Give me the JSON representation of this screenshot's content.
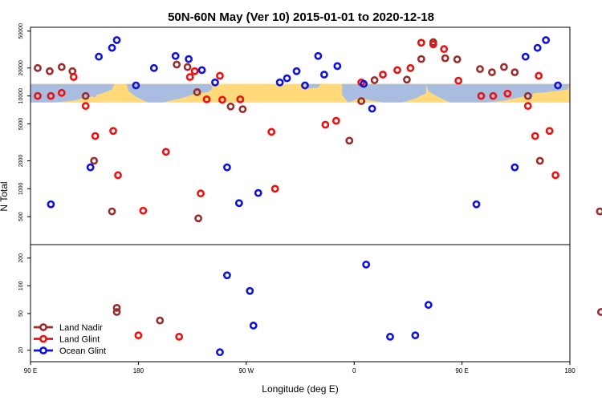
{
  "chart_data": {
    "type": "scatter",
    "title": "50N-60N May (Ver 10)   2015-01-01 to 2020-12-18",
    "xlabel": "Longitude (deg E)",
    "ylabel": "N Total",
    "x_scale": "linear",
    "y_scale": "log",
    "xlim": [
      90,
      540
    ],
    "x_ticks": [
      {
        "value": 90,
        "label": "90 E"
      },
      {
        "value": 180,
        "label": "180"
      },
      {
        "value": 270,
        "label": "90 W"
      },
      {
        "value": 360,
        "label": "0"
      },
      {
        "value": 450,
        "label": "90 E"
      },
      {
        "value": 540,
        "label": "180"
      }
    ],
    "top_panel": {
      "ylim": [
        250,
        55000
      ],
      "y_ticks": [
        500,
        1000,
        2000,
        5000,
        10000,
        20000,
        50000
      ],
      "band": {
        "low": 8500,
        "high": 13500,
        "color": "#ffd97a",
        "map_color": "#a9bde0"
      }
    },
    "bottom_panel": {
      "ylim": [
        15,
        280
      ],
      "y_ticks": [
        20,
        50,
        100,
        200
      ]
    },
    "legend": {
      "position": "bottom-left",
      "entries": [
        {
          "name": "Land Nadir",
          "color": "#9b2c2c"
        },
        {
          "name": "Land Glint",
          "color": "#ee1111"
        },
        {
          "name": "Ocean Glint",
          "color": "#1111dd"
        }
      ]
    },
    "series": [
      {
        "name": "Land Nadir",
        "color": "#9b2c2c",
        "top": [
          [
            96,
            20000
          ],
          [
            106,
            18500
          ],
          [
            116,
            20500
          ],
          [
            125,
            18500
          ],
          [
            136,
            10000
          ],
          [
            143,
            2000
          ],
          [
            158,
            570
          ],
          [
            162,
            52
          ],
          [
            212,
            21800
          ],
          [
            221,
            20500
          ],
          [
            229,
            11000
          ],
          [
            230,
            480
          ],
          [
            257,
            7700
          ],
          [
            267,
            7200
          ],
          [
            356,
            3300
          ],
          [
            366,
            8800
          ],
          [
            377,
            14800
          ],
          [
            404,
            15000
          ],
          [
            416,
            25000
          ],
          [
            426,
            38000
          ],
          [
            436,
            25500
          ],
          [
            446,
            24800
          ],
          [
            465,
            19500
          ],
          [
            475,
            18000
          ],
          [
            485,
            20500
          ],
          [
            494,
            18000
          ],
          [
            505,
            10000
          ],
          [
            515,
            2000
          ],
          [
            565,
            570
          ]
        ],
        "bottom": [
          [
            162,
            52
          ],
          [
            198,
            42
          ],
          [
            566,
            52
          ]
        ]
      },
      {
        "name": "Land Glint",
        "color": "#ee1111",
        "top": [
          [
            96,
            10000
          ],
          [
            107,
            10000
          ],
          [
            116,
            10800
          ],
          [
            126,
            16000
          ],
          [
            136,
            7800
          ],
          [
            144,
            3700
          ],
          [
            159,
            4200
          ],
          [
            163,
            1400
          ],
          [
            184,
            580
          ],
          [
            203,
            2500
          ],
          [
            232,
            890
          ],
          [
            237,
            9200
          ],
          [
            223,
            16000
          ],
          [
            227,
            18500
          ],
          [
            248,
            16500
          ],
          [
            250,
            9100
          ],
          [
            265,
            9200
          ],
          [
            291,
            4100
          ],
          [
            294,
            1000
          ],
          [
            336,
            4900
          ],
          [
            345,
            5400
          ],
          [
            366,
            14000
          ],
          [
            384,
            17000
          ],
          [
            396,
            19000
          ],
          [
            407,
            20000
          ],
          [
            416,
            37500
          ],
          [
            426,
            36000
          ],
          [
            435,
            32000
          ],
          [
            447,
            14600
          ],
          [
            466,
            10000
          ],
          [
            476,
            10000
          ],
          [
            488,
            10600
          ],
          [
            505,
            7800
          ],
          [
            511,
            3700
          ],
          [
            514,
            16500
          ],
          [
            523,
            4200
          ],
          [
            528,
            1400
          ]
        ],
        "bottom": [
          [
            180,
            29
          ],
          [
            214,
            28
          ]
        ]
      },
      {
        "name": "Ocean Glint",
        "color": "#1111dd",
        "top": [
          [
            107,
            680
          ],
          [
            140,
            1700
          ],
          [
            147,
            26500
          ],
          [
            158,
            33000
          ],
          [
            162,
            40000
          ],
          [
            178,
            13000
          ],
          [
            193,
            20000
          ],
          [
            211,
            27000
          ],
          [
            222,
            25000
          ],
          [
            233,
            19000
          ],
          [
            244,
            14000
          ],
          [
            254,
            1700
          ],
          [
            264,
            700
          ],
          [
            280,
            900
          ],
          [
            298,
            14000
          ],
          [
            304,
            15500
          ],
          [
            312,
            18500
          ],
          [
            319,
            13000
          ],
          [
            330,
            27000
          ],
          [
            335,
            17000
          ],
          [
            346,
            21000
          ],
          [
            368,
            13500
          ],
          [
            375,
            7300
          ],
          [
            462,
            680
          ],
          [
            494,
            1700
          ],
          [
            503,
            26500
          ],
          [
            513,
            33000
          ],
          [
            520,
            40000
          ],
          [
            530,
            13000
          ]
        ],
        "bottom": [
          [
            248,
            19
          ],
          [
            254,
            130
          ],
          [
            273,
            88
          ],
          [
            276,
            37
          ],
          [
            370,
            170
          ],
          [
            390,
            28
          ],
          [
            411,
            29
          ],
          [
            422,
            62
          ]
        ]
      }
    ]
  }
}
